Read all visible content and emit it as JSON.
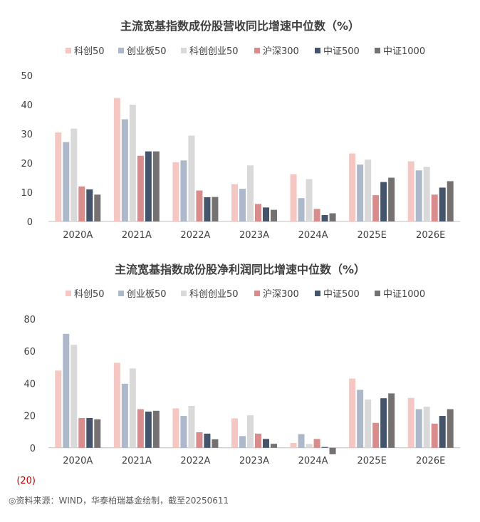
{
  "colors": {
    "科创50": "#f4c7c3",
    "创业板50": "#adb9ca",
    "科创创业50": "#d9d9d9",
    "沪深300": "#d98c8c",
    "中证500": "#44546a",
    "中证1000": "#767171",
    "axis": "#bfbfbf",
    "negative_label": "#c00000"
  },
  "source": "◎资料来源：WIND，华泰柏瑞基金绘制，截至20250611",
  "chart_data": [
    {
      "type": "bar",
      "title": "主流宽基指数成份股营收同比增速中位数（%）",
      "categories": [
        "2020A",
        "2021A",
        "2022A",
        "2023A",
        "2024A",
        "2025E",
        "2026E"
      ],
      "ylim": [
        0,
        50
      ],
      "yticks": [
        "0",
        "10",
        "20",
        "30",
        "40",
        "50"
      ],
      "legend_position": "top",
      "series": [
        {
          "name": "科创50",
          "values": [
            30.5,
            42.3,
            20.3,
            12.8,
            16.2,
            23.3,
            20.6
          ]
        },
        {
          "name": "创业板50",
          "values": [
            27.2,
            35.0,
            20.9,
            11.2,
            8.0,
            19.5,
            17.5
          ]
        },
        {
          "name": "科创创业50",
          "values": [
            31.8,
            40.0,
            29.4,
            19.2,
            14.5,
            21.2,
            18.7
          ]
        },
        {
          "name": "沪深300",
          "values": [
            12.0,
            22.5,
            10.6,
            6.0,
            4.3,
            9.0,
            9.2
          ]
        },
        {
          "name": "中证500",
          "values": [
            11.0,
            24.0,
            8.3,
            4.8,
            2.2,
            13.5,
            11.6
          ]
        },
        {
          "name": "中证1000",
          "values": [
            9.2,
            24.0,
            8.4,
            4.0,
            2.8,
            15.0,
            13.8
          ]
        }
      ]
    },
    {
      "type": "bar",
      "title": "主流宽基指数成份股净利润同比增速中位数（%）",
      "categories": [
        "2020A",
        "2021A",
        "2022A",
        "2023A",
        "2024A",
        "2025E",
        "2026E"
      ],
      "ylim": [
        -20,
        80
      ],
      "yticks": [
        "(20)",
        "0",
        "20",
        "40",
        "60",
        "80"
      ],
      "legend_position": "top",
      "series": [
        {
          "name": "科创50",
          "values": [
            48.0,
            52.8,
            24.5,
            18.3,
            3.0,
            43.0,
            31.0
          ]
        },
        {
          "name": "创业板50",
          "values": [
            70.8,
            39.8,
            19.8,
            7.3,
            8.5,
            36.0,
            24.0
          ]
        },
        {
          "name": "科创创业50",
          "values": [
            64.0,
            49.3,
            26.0,
            20.2,
            2.3,
            30.0,
            25.5
          ]
        },
        {
          "name": "沪深300",
          "values": [
            18.5,
            24.0,
            9.7,
            8.8,
            5.5,
            15.5,
            15.0
          ]
        },
        {
          "name": "中证500",
          "values": [
            18.5,
            22.5,
            8.8,
            5.5,
            0.5,
            30.8,
            19.8
          ]
        },
        {
          "name": "中证1000",
          "values": [
            17.7,
            23.0,
            5.3,
            2.5,
            -4.0,
            33.8,
            24.0
          ]
        }
      ]
    }
  ]
}
